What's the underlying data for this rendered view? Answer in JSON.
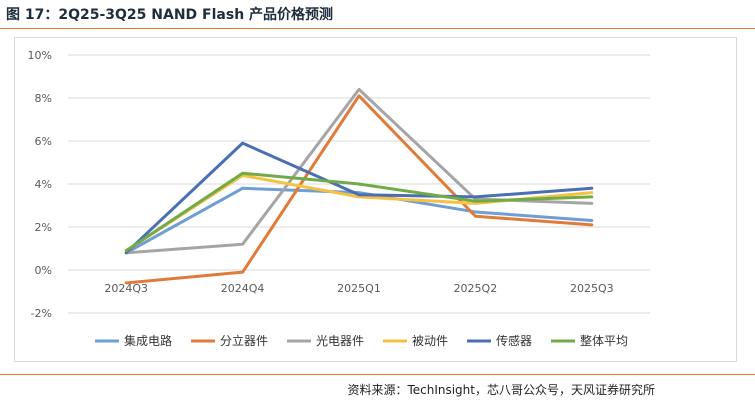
{
  "figure": {
    "title": "图 17：2Q25-3Q25 NAND Flash 产品价格预测",
    "source": "资料来源：TechInsight，芯八哥公众号，天风证券研究所"
  },
  "chart_data": {
    "type": "line",
    "title": "",
    "xlabel": "",
    "ylabel": "",
    "categories": [
      "2024Q3",
      "2024Q4",
      "2025Q1",
      "2025Q2",
      "2025Q3"
    ],
    "ylim": [
      -2,
      10
    ],
    "yticks": [
      -2,
      0,
      2,
      4,
      6,
      8,
      10
    ],
    "ytick_format": "percent",
    "grid": true,
    "legend_position": "bottom",
    "series": [
      {
        "name": "集成电路",
        "color": "#6f9ed5",
        "values": [
          0.8,
          3.8,
          3.6,
          2.7,
          2.3
        ]
      },
      {
        "name": "分立器件",
        "color": "#e07b39",
        "values": [
          -0.6,
          -0.1,
          8.1,
          2.5,
          2.1
        ]
      },
      {
        "name": "光电器件",
        "color": "#a5a5a5",
        "values": [
          0.8,
          1.2,
          8.4,
          3.3,
          3.1
        ]
      },
      {
        "name": "被动件",
        "color": "#f5c242",
        "values": [
          0.9,
          4.4,
          3.4,
          3.1,
          3.6
        ]
      },
      {
        "name": "传感器",
        "color": "#4a6fb5",
        "values": [
          0.8,
          5.9,
          3.5,
          3.4,
          3.8
        ]
      },
      {
        "name": "整体平均",
        "color": "#71ab48",
        "values": [
          0.9,
          4.5,
          4.0,
          3.2,
          3.4
        ]
      }
    ]
  }
}
